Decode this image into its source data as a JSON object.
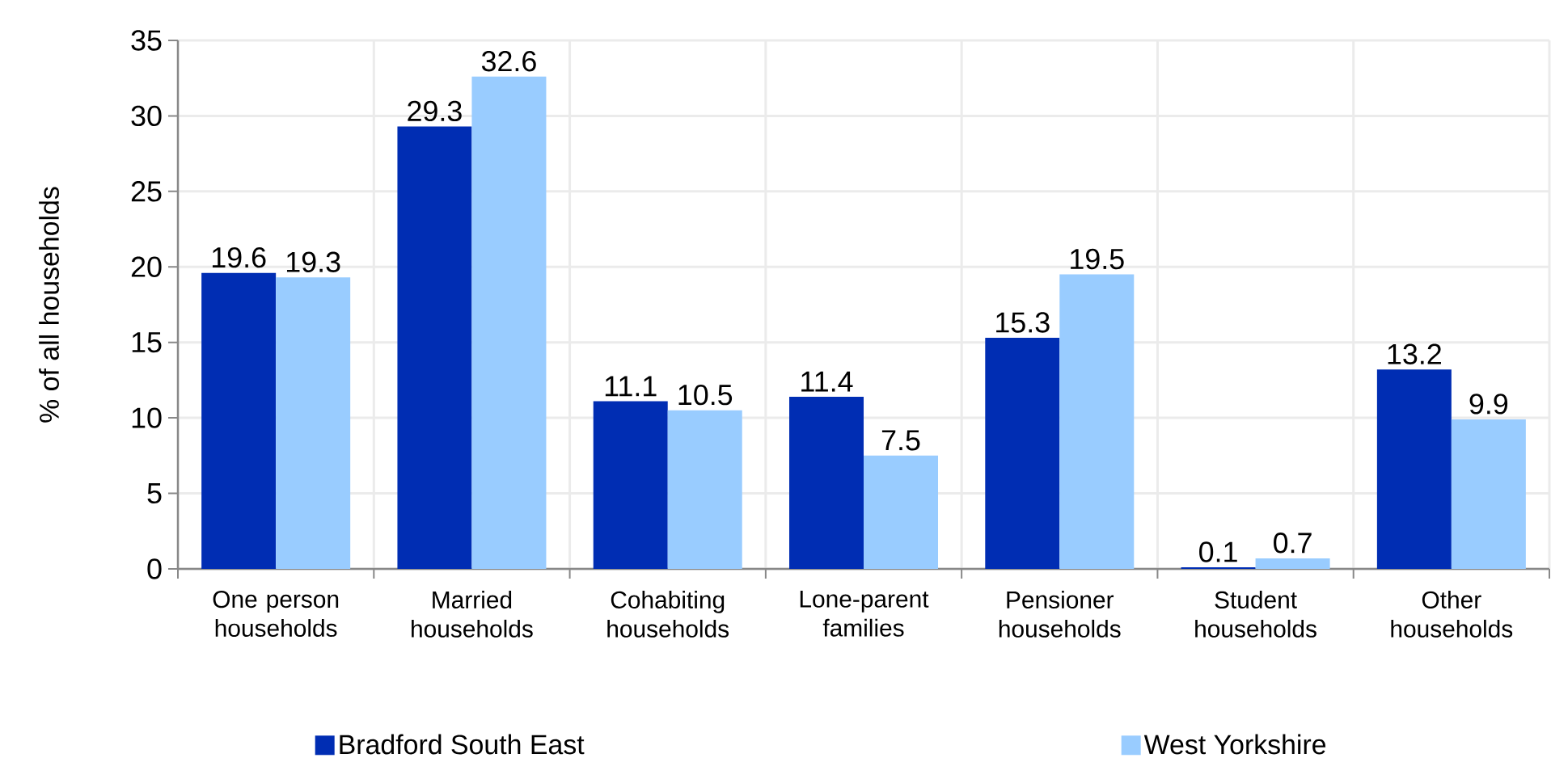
{
  "chart_data": {
    "type": "bar",
    "ylabel": "% of all households",
    "categories": [
      "One person households",
      "Married households",
      "Cohabiting households",
      "Lone-parent families",
      "Pensioner households",
      "Student households",
      "Other households"
    ],
    "series": [
      {
        "name": "Bradford South East",
        "color": "#002db3",
        "values": [
          19.6,
          29.3,
          11.1,
          11.4,
          15.3,
          0.1,
          13.2
        ]
      },
      {
        "name": "West Yorkshire",
        "color": "#99ccff",
        "values": [
          19.3,
          32.6,
          10.5,
          7.5,
          19.5,
          0.7,
          9.9
        ]
      }
    ],
    "ylim": [
      0,
      35
    ],
    "yticks": [
      0,
      5,
      10,
      15,
      20,
      25,
      30,
      35
    ],
    "grid": true,
    "legend": "bottom",
    "data_labels": true
  }
}
